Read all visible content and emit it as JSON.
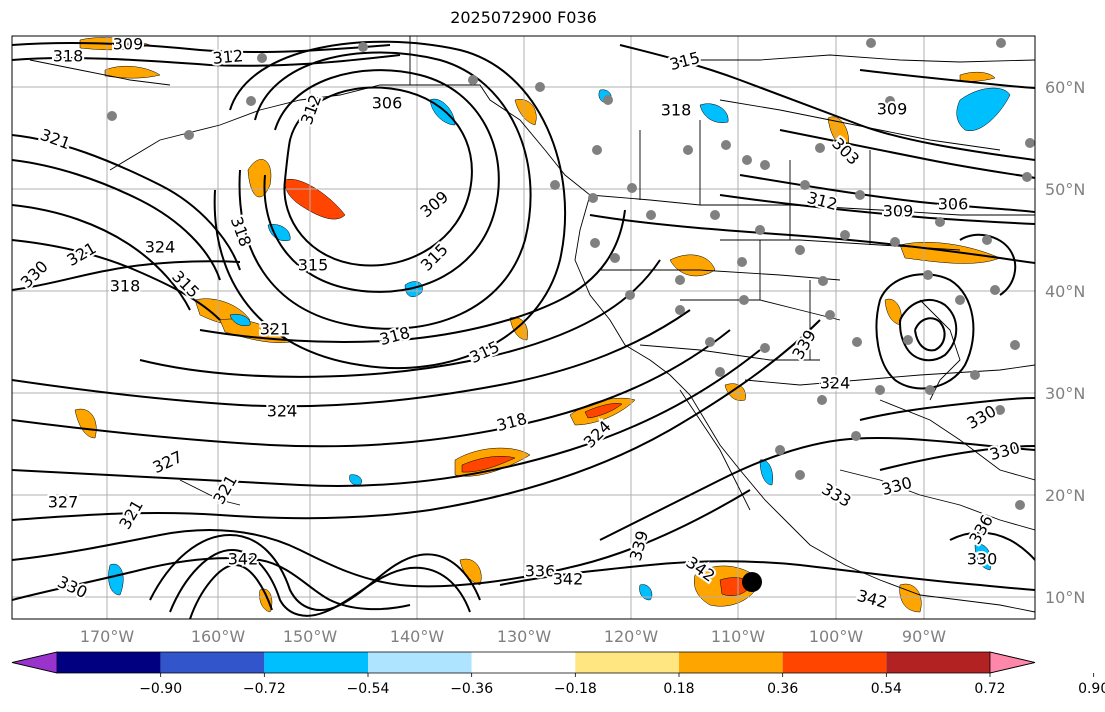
{
  "title": "2025072900 F036",
  "lat_labels": [
    "60°N",
    "50°N",
    "40°N",
    "30°N",
    "20°N",
    "10°N"
  ],
  "lon_labels": [
    "170°W",
    "160°W",
    "150°W",
    "140°W",
    "130°W",
    "120°W",
    "110°W",
    "100°W",
    "90°W"
  ],
  "colorbar": {
    "ticks": [
      "−0.90",
      "−0.72",
      "−0.54",
      "−0.36",
      "−0.18",
      "0.18",
      "0.36",
      "0.54",
      "0.72",
      "0.90"
    ],
    "colors": [
      "#9933cc",
      "#000080",
      "#3355cc",
      "#00bfff",
      "#aee4ff",
      "#ffffff",
      "#ffe680",
      "#ffa500",
      "#ff4500",
      "#b22222",
      "#ff88aa"
    ]
  },
  "contour_labels": [
    "309",
    "312",
    "318",
    "321",
    "312",
    "306",
    "315",
    "318",
    "309",
    "303",
    "312",
    "309",
    "306",
    "318",
    "324",
    "330",
    "321",
    "318",
    "315",
    "315",
    "309",
    "315",
    "321",
    "318",
    "315",
    "339",
    "324",
    "330",
    "324",
    "330",
    "318",
    "324",
    "327",
    "321",
    "327",
    "321",
    "336",
    "342",
    "339",
    "342",
    "342",
    "330",
    "333",
    "330",
    "330",
    "342",
    "336"
  ],
  "colors": {
    "contour": "#000000",
    "grid": "#b0b0b0",
    "coast": "#000000",
    "dots": "#808080"
  }
}
